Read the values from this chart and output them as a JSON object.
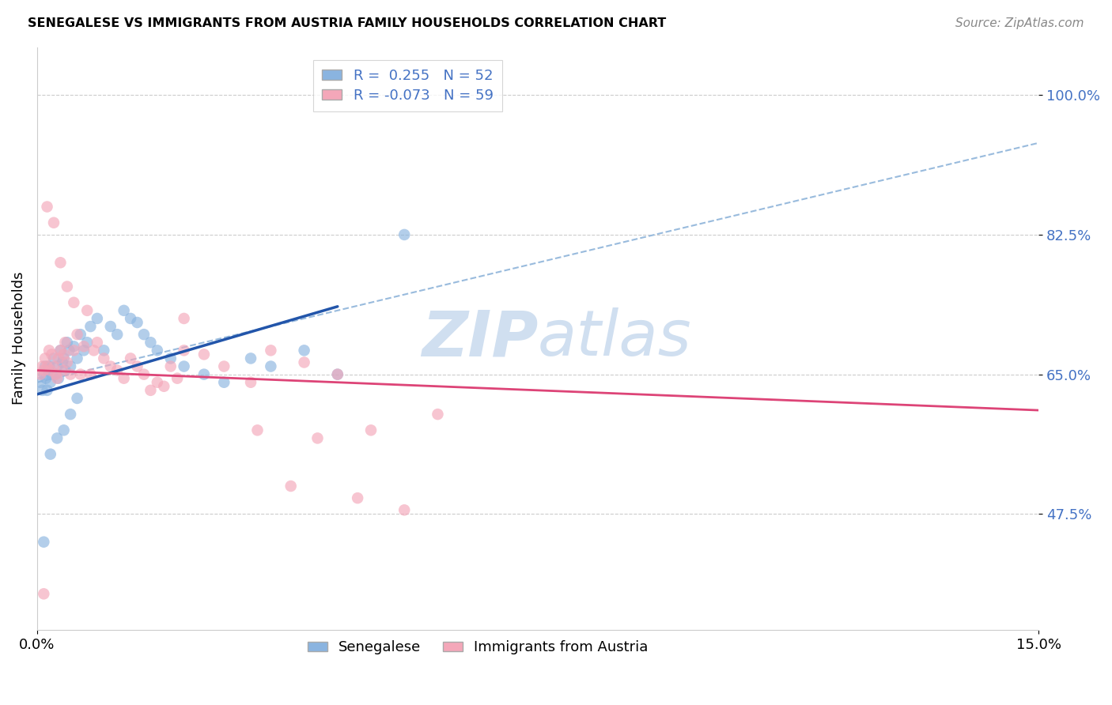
{
  "title": "SENEGALESE VS IMMIGRANTS FROM AUSTRIA FAMILY HOUSEHOLDS CORRELATION CHART",
  "source": "Source: ZipAtlas.com",
  "ylabel": "Family Households",
  "yticks": [
    47.5,
    65.0,
    82.5,
    100.0
  ],
  "ytick_labels": [
    "47.5%",
    "65.0%",
    "82.5%",
    "100.0%"
  ],
  "xmin": 0.0,
  "xmax": 15.0,
  "ymin": 33.0,
  "ymax": 106.0,
  "R1": 0.255,
  "N1": 52,
  "R2": -0.073,
  "N2": 59,
  "color1": "#8ab4e0",
  "color2": "#f4a7b9",
  "trendline1_color": "#2255aa",
  "trendline2_color": "#dd4477",
  "dashed_line_color": "#99bbdd",
  "watermark_color": "#d0dff0",
  "trendline1_xmax": 4.5,
  "blue_trend_x0": 0.0,
  "blue_trend_y0": 62.5,
  "blue_trend_x1": 4.5,
  "blue_trend_y1": 73.5,
  "pink_trend_x0": 0.0,
  "pink_trend_y0": 65.5,
  "pink_trend_x1": 15.0,
  "pink_trend_y1": 60.5,
  "dash_x0": 0.0,
  "dash_y0": 64.0,
  "dash_x1": 15.0,
  "dash_y1": 94.0,
  "senegalese_x": [
    0.05,
    0.08,
    0.1,
    0.12,
    0.13,
    0.15,
    0.17,
    0.18,
    0.2,
    0.22,
    0.25,
    0.28,
    0.3,
    0.32,
    0.35,
    0.38,
    0.4,
    0.42,
    0.45,
    0.48,
    0.5,
    0.55,
    0.6,
    0.65,
    0.7,
    0.75,
    0.8,
    0.9,
    1.0,
    1.1,
    1.2,
    1.3,
    1.4,
    1.5,
    1.6,
    1.7,
    1.8,
    2.0,
    2.2,
    2.5,
    2.8,
    3.2,
    3.5,
    4.0,
    4.5,
    0.1,
    0.2,
    0.3,
    0.4,
    0.5,
    0.6,
    5.5
  ],
  "senegalese_y": [
    64.0,
    63.0,
    65.0,
    66.0,
    64.5,
    63.0,
    65.5,
    66.0,
    64.0,
    65.0,
    67.0,
    65.0,
    66.0,
    64.5,
    68.0,
    66.5,
    67.0,
    65.5,
    69.0,
    68.0,
    66.0,
    68.5,
    67.0,
    70.0,
    68.0,
    69.0,
    71.0,
    72.0,
    68.0,
    71.0,
    70.0,
    73.0,
    72.0,
    71.5,
    70.0,
    69.0,
    68.0,
    67.0,
    66.0,
    65.0,
    64.0,
    67.0,
    66.0,
    68.0,
    65.0,
    44.0,
    55.0,
    57.0,
    58.0,
    60.0,
    62.0,
    82.5
  ],
  "austria_x": [
    0.05,
    0.08,
    0.1,
    0.12,
    0.15,
    0.18,
    0.2,
    0.22,
    0.25,
    0.28,
    0.3,
    0.32,
    0.35,
    0.38,
    0.4,
    0.42,
    0.45,
    0.5,
    0.55,
    0.6,
    0.65,
    0.7,
    0.75,
    0.8,
    0.85,
    0.9,
    1.0,
    1.1,
    1.2,
    1.3,
    1.4,
    1.5,
    1.6,
    1.7,
    1.8,
    1.9,
    2.0,
    2.1,
    2.2,
    2.5,
    2.8,
    3.2,
    3.5,
    4.0,
    4.5,
    0.15,
    0.25,
    0.35,
    0.45,
    0.55,
    2.2,
    3.3,
    3.8,
    4.8,
    5.5,
    0.1,
    4.2,
    5.0,
    6.0
  ],
  "austria_y": [
    65.0,
    66.0,
    65.5,
    67.0,
    66.0,
    68.0,
    65.5,
    67.5,
    66.0,
    65.0,
    64.5,
    67.0,
    68.0,
    65.5,
    67.5,
    69.0,
    66.5,
    65.0,
    68.0,
    70.0,
    65.0,
    68.5,
    73.0,
    65.0,
    68.0,
    69.0,
    67.0,
    66.0,
    65.5,
    64.5,
    67.0,
    66.0,
    65.0,
    63.0,
    64.0,
    63.5,
    66.0,
    64.5,
    68.0,
    67.5,
    66.0,
    64.0,
    68.0,
    66.5,
    65.0,
    86.0,
    84.0,
    79.0,
    76.0,
    74.0,
    72.0,
    58.0,
    51.0,
    49.5,
    48.0,
    37.5,
    57.0,
    58.0,
    60.0
  ]
}
